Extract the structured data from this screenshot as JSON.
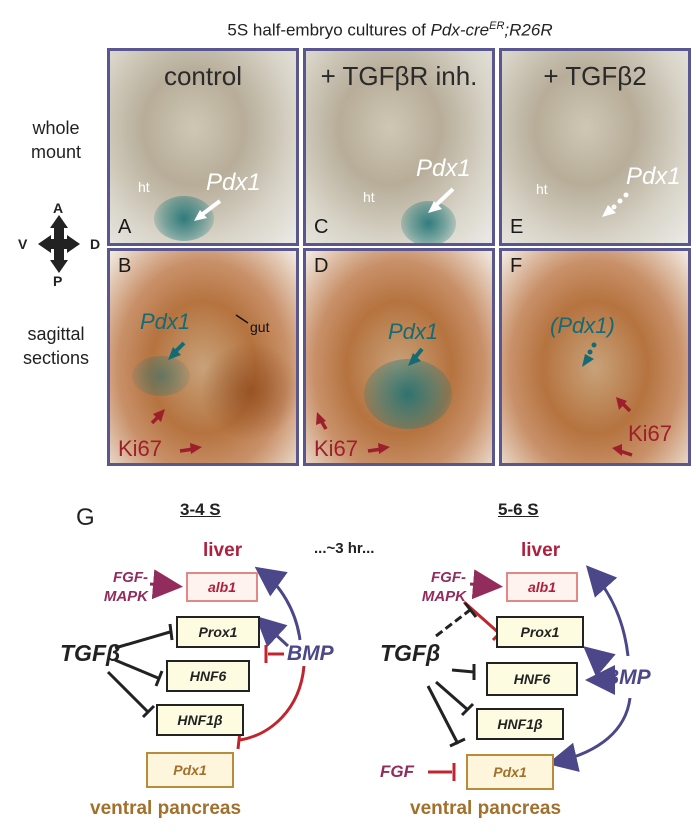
{
  "title": {
    "prefix": "5S half-embryo cultures of ",
    "gene": "Pdx-cre",
    "superscript": "ER",
    "suffix": ";R26R"
  },
  "row_labels": {
    "whole_mount": [
      "whole",
      "mount"
    ],
    "sagittal": [
      "sagittal",
      "sections"
    ]
  },
  "compass": {
    "up": "A",
    "down": "P",
    "left": "V",
    "right": "D"
  },
  "panels": {
    "columns": [
      "control",
      "+ TGFβR inh.",
      "+ TGFβ2"
    ],
    "top_letters": [
      "A",
      "C",
      "E"
    ],
    "bottom_letters": [
      "B",
      "D",
      "F"
    ],
    "ht_label": "ht",
    "pdx1_label": "Pdx1",
    "pdx1_paren_label": "(Pdx1)",
    "ki67_label": "Ki67",
    "gut_label": "gut"
  },
  "diagram": {
    "panel_letter": "G",
    "between": "...~3 hr...",
    "left": {
      "header": "3-4 S",
      "liver": "liver",
      "fgf": [
        "FGF-",
        "MAPK"
      ],
      "tgf": "TGFβ",
      "bmp": "BMP",
      "genes": [
        "alb1",
        "Prox1",
        "HNF6",
        "HNF1β",
        "Pdx1"
      ],
      "pancreas": "ventral pancreas"
    },
    "right": {
      "header": "5-6 S",
      "liver": "liver",
      "fgf": [
        "FGF-",
        "MAPK"
      ],
      "fgf2": "FGF",
      "tgf": "TGFβ",
      "bmp": "BMP",
      "genes": [
        "alb1",
        "Prox1",
        "HNF6",
        "HNF1β",
        "Pdx1"
      ],
      "pancreas": "ventral pancreas"
    }
  },
  "colors": {
    "panel_border": "#5a5690",
    "bmp": "#4b4788",
    "fgf": "#912c5c",
    "inhibit_red": "#c0242c",
    "liver": "#b0203e",
    "pancreas": "#a3702c",
    "pdx1_stain": "#146b74",
    "ki67": "#9e1f2c"
  }
}
